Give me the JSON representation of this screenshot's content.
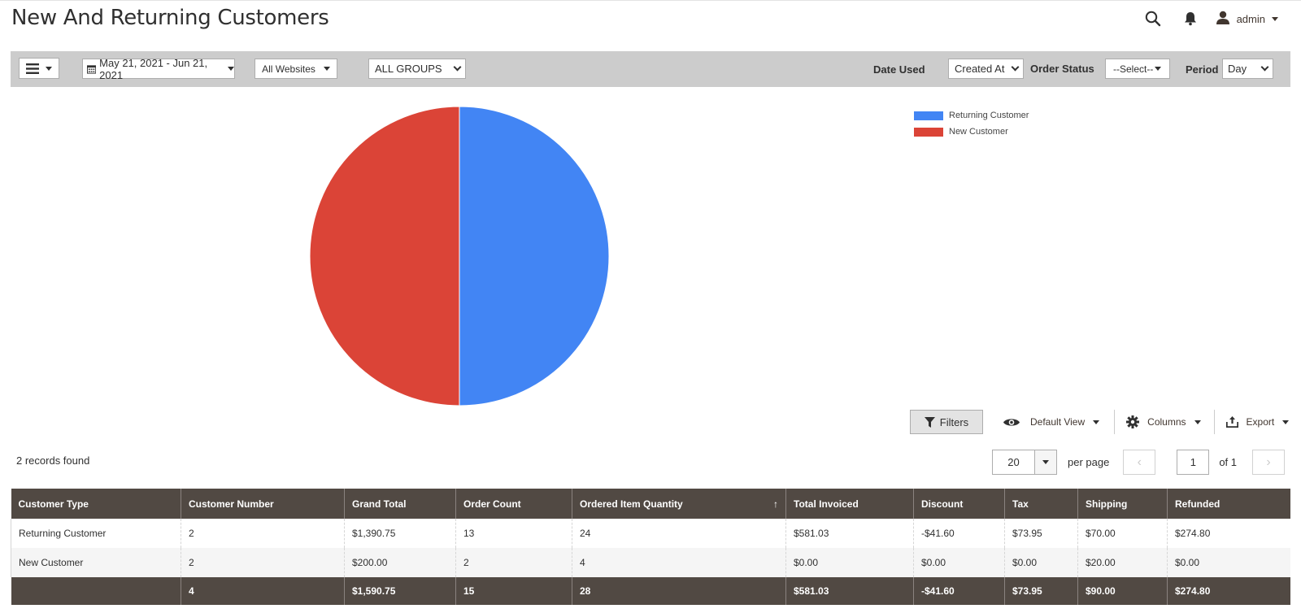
{
  "page": {
    "title": "New And Returning Customers"
  },
  "header": {
    "user": "admin",
    "icons": [
      "search-icon",
      "bell-icon",
      "user-icon"
    ]
  },
  "toolbar": {
    "date_range": "May 21, 2021 - Jun 21, 2021",
    "websites": "All Websites",
    "groups": "ALL GROUPS",
    "date_used_label": "Date Used",
    "date_used_value": "Created At",
    "order_status_label": "Order Status",
    "order_status_value": "--Select--",
    "period_label": "Period",
    "period_value": "Day"
  },
  "chart_data": {
    "type": "pie",
    "slices": [
      {
        "name": "Returning Customer",
        "value": 2,
        "color": "#4285f4"
      },
      {
        "name": "New Customer",
        "value": 2,
        "color": "#db4437"
      }
    ]
  },
  "grid_actions": {
    "filters": "Filters",
    "view": "Default View",
    "columns": "Columns",
    "export": "Export"
  },
  "records": "2 records found",
  "pager": {
    "per_page_value": "20",
    "per_page_label": "per page",
    "page": "1",
    "of_label": "of 1"
  },
  "table": {
    "headers": [
      "Customer Type",
      "Customer Number",
      "Grand Total",
      "Order Count",
      "Ordered Item Quantity",
      "Total Invoiced",
      "Discount",
      "Tax",
      "Shipping",
      "Refunded"
    ],
    "sort_indicator": "↑",
    "rows": [
      [
        "Returning Customer",
        "2",
        "$1,390.75",
        "13",
        "24",
        "$581.03",
        "-$41.60",
        "$73.95",
        "$70.00",
        "$274.80"
      ],
      [
        "New Customer",
        "2",
        "$200.00",
        "2",
        "4",
        "$0.00",
        "$0.00",
        "$0.00",
        "$20.00",
        "$0.00"
      ]
    ],
    "totals": [
      "",
      "4",
      "$1,590.75",
      "15",
      "28",
      "$581.03",
      "-$41.60",
      "$73.95",
      "$90.00",
      "$274.80"
    ]
  }
}
